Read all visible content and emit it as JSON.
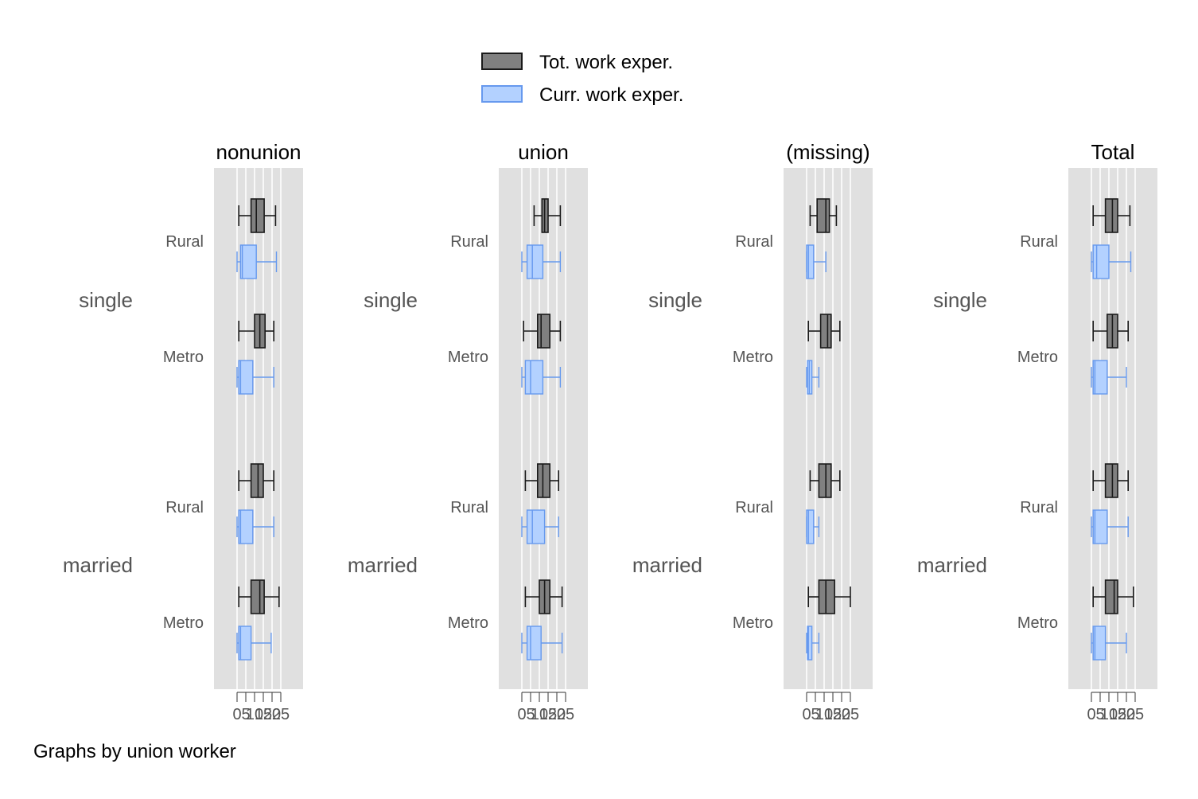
{
  "chart_data": {
    "type": "boxplot",
    "note": "Graphs by union worker",
    "legend": {
      "placement": "top-center",
      "entries": [
        {
          "label": "Tot. work exper.",
          "fill": "#808080",
          "stroke": "#1a1a1a"
        },
        {
          "label": "Curr. work exper.",
          "fill": "#b3d1ff",
          "stroke": "#6699ee"
        }
      ]
    },
    "x_axis": {
      "ticks": [
        0,
        5,
        10,
        15,
        20,
        25
      ],
      "range": [
        0,
        30
      ],
      "grid": true
    },
    "groups": [
      "single",
      "married"
    ],
    "subgroups": [
      "Rural",
      "Metro"
    ],
    "panels": [
      {
        "title": "nonunion",
        "rows": [
          {
            "group": "single",
            "sub": "Rural",
            "tot": {
              "min": 1,
              "q1": 8,
              "med": 11,
              "q3": 15.5,
              "max": 22
            },
            "curr": {
              "min": 0,
              "q1": 2,
              "med": 3,
              "q3": 11,
              "max": 22.5
            }
          },
          {
            "group": "single",
            "sub": "Metro",
            "tot": {
              "min": 1,
              "q1": 10,
              "med": 13,
              "q3": 16,
              "max": 21
            },
            "curr": {
              "min": 0,
              "q1": 1,
              "med": 2,
              "q3": 9,
              "max": 21
            }
          },
          {
            "group": "married",
            "sub": "Rural",
            "tot": {
              "min": 1,
              "q1": 8,
              "med": 12,
              "q3": 15,
              "max": 21
            },
            "curr": {
              "min": 0,
              "q1": 1,
              "med": 2,
              "q3": 9,
              "max": 21
            }
          },
          {
            "group": "married",
            "sub": "Metro",
            "tot": {
              "min": 1,
              "q1": 8,
              "med": 13,
              "q3": 15.5,
              "max": 24
            },
            "curr": {
              "min": 0,
              "q1": 1,
              "med": 2,
              "q3": 8,
              "max": 19.5
            }
          }
        ]
      },
      {
        "title": "union",
        "rows": [
          {
            "group": "single",
            "sub": "Rural",
            "tot": {
              "min": 7,
              "q1": 11.5,
              "med": 13,
              "q3": 15,
              "max": 22
            },
            "curr": {
              "min": 0,
              "q1": 3,
              "med": 6,
              "q3": 12,
              "max": 22
            }
          },
          {
            "group": "single",
            "sub": "Metro",
            "tot": {
              "min": 1,
              "q1": 9,
              "med": 11,
              "q3": 16,
              "max": 22
            },
            "curr": {
              "min": 0,
              "q1": 2,
              "med": 5,
              "q3": 12,
              "max": 22
            }
          },
          {
            "group": "married",
            "sub": "Rural",
            "tot": {
              "min": 2,
              "q1": 9,
              "med": 12,
              "q3": 16,
              "max": 21
            },
            "curr": {
              "min": 0,
              "q1": 3,
              "med": 6,
              "q3": 13,
              "max": 21
            }
          },
          {
            "group": "married",
            "sub": "Metro",
            "tot": {
              "min": 2,
              "q1": 10,
              "med": 13,
              "q3": 16,
              "max": 23
            },
            "curr": {
              "min": 0,
              "q1": 3,
              "med": 5,
              "q3": 11,
              "max": 23
            }
          }
        ]
      },
      {
        "title": "(missing)",
        "rows": [
          {
            "group": "single",
            "sub": "Rural",
            "tot": {
              "min": 2,
              "q1": 6,
              "med": 11,
              "q3": 13,
              "max": 17
            },
            "curr": {
              "min": 0,
              "q1": 0,
              "med": 1,
              "q3": 4,
              "max": 11
            }
          },
          {
            "group": "single",
            "sub": "Metro",
            "tot": {
              "min": 1,
              "q1": 8,
              "med": 12,
              "q3": 14,
              "max": 19
            },
            "curr": {
              "min": 0,
              "q1": 0.5,
              "med": 1.5,
              "q3": 3,
              "max": 7
            }
          },
          {
            "group": "married",
            "sub": "Rural",
            "tot": {
              "min": 2,
              "q1": 7,
              "med": 11,
              "q3": 14,
              "max": 19
            },
            "curr": {
              "min": 0,
              "q1": 0,
              "med": 1,
              "q3": 4,
              "max": 7
            }
          },
          {
            "group": "married",
            "sub": "Metro",
            "tot": {
              "min": 1,
              "q1": 7,
              "med": 11,
              "q3": 16,
              "max": 25
            },
            "curr": {
              "min": 0,
              "q1": 0.5,
              "med": 1,
              "q3": 3,
              "max": 7
            }
          }
        ]
      },
      {
        "title": "Total",
        "rows": [
          {
            "group": "single",
            "sub": "Rural",
            "tot": {
              "min": 1,
              "q1": 8,
              "med": 12,
              "q3": 15,
              "max": 22
            },
            "curr": {
              "min": 0,
              "q1": 1,
              "med": 3,
              "q3": 10,
              "max": 22.5
            }
          },
          {
            "group": "single",
            "sub": "Metro",
            "tot": {
              "min": 1,
              "q1": 9,
              "med": 12,
              "q3": 15,
              "max": 21
            },
            "curr": {
              "min": 0,
              "q1": 1,
              "med": 2,
              "q3": 9,
              "max": 20
            }
          },
          {
            "group": "married",
            "sub": "Rural",
            "tot": {
              "min": 1,
              "q1": 8,
              "med": 12,
              "q3": 15,
              "max": 21
            },
            "curr": {
              "min": 0,
              "q1": 1,
              "med": 2,
              "q3": 9,
              "max": 21
            }
          },
          {
            "group": "married",
            "sub": "Metro",
            "tot": {
              "min": 1,
              "q1": 8,
              "med": 13,
              "q3": 15,
              "max": 24
            },
            "curr": {
              "min": 0,
              "q1": 1,
              "med": 2,
              "q3": 8,
              "max": 20
            }
          }
        ]
      }
    ]
  }
}
